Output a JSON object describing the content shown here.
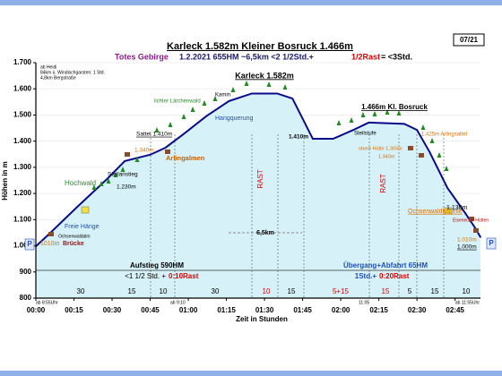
{
  "chart_data": {
    "type": "area",
    "title": "Karleck 1.582m Kleiner Bosruck 1.466m",
    "badge": "07/21",
    "subtitle": [
      {
        "text": "Totes Gebirge",
        "color": "#8b1a8b"
      },
      {
        "text": "1.2.2021   655HM     ~6,5km     <2 1/2Std.+",
        "color": "#1a1a6e"
      },
      {
        "text": "1/2Rast",
        "color": "#e00000"
      },
      {
        "text": "= <3Std.",
        "color": "#000000"
      }
    ],
    "x_label": "Zeit in Stunden",
    "y_label": "Höhen in m",
    "line_color": "#0a0a8c",
    "fill_color": "#d6f1f7",
    "x": [
      0,
      5,
      16,
      28,
      35,
      45,
      51,
      58,
      67,
      76,
      85,
      95,
      101,
      109,
      117,
      125,
      131,
      145,
      150,
      155,
      162,
      169,
      173,
      175
    ],
    "values": [
      998,
      1043,
      1146,
      1255,
      1324,
      1348,
      1375,
      1426,
      1495,
      1553,
      1582,
      1582,
      1563,
      1409,
      1409,
      1443,
      1471,
      1466,
      1443,
      1358,
      1221,
      1125,
      1067,
      1033
    ],
    "xlim": [
      0,
      175
    ],
    "ylim": [
      800,
      1700
    ],
    "xticks": [
      {
        "value": 0,
        "label": "00:00"
      },
      {
        "value": 15,
        "label": "00:15"
      },
      {
        "value": 30,
        "label": "00:30"
      },
      {
        "value": 45,
        "label": "00:45"
      },
      {
        "value": 60,
        "label": "01:00"
      },
      {
        "value": 75,
        "label": "01:15"
      },
      {
        "value": 90,
        "label": "01:30"
      },
      {
        "value": 105,
        "label": "01:45"
      },
      {
        "value": 120,
        "label": "02:00"
      },
      {
        "value": 135,
        "label": "02:15"
      },
      {
        "value": 150,
        "label": "02:30"
      },
      {
        "value": 165,
        "label": "02:45"
      }
    ],
    "yticks": [
      {
        "value": 800,
        "label": "800"
      },
      {
        "value": 900,
        "label": "900"
      },
      {
        "value": 1000,
        "label": "1.000"
      },
      {
        "value": 1100,
        "label": "1.100"
      },
      {
        "value": 1200,
        "label": "1.200"
      },
      {
        "value": 1300,
        "label": "1.300"
      },
      {
        "value": 1400,
        "label": "1.400"
      },
      {
        "value": 1500,
        "label": "1.500"
      },
      {
        "value": 1600,
        "label": "1.600"
      },
      {
        "value": 1700,
        "label": "1.700"
      }
    ],
    "grid": true,
    "durations": [
      {
        "text": "30",
        "color": "#000000"
      },
      {
        "text": "15",
        "color": "#000000"
      },
      {
        "text": "10",
        "color": "#000000"
      },
      {
        "text": "30",
        "color": "#000000"
      },
      {
        "text": "10",
        "color": "#e00000"
      },
      {
        "text": "15",
        "color": "#000000"
      },
      {
        "text": "5+15",
        "color": "#e00000"
      },
      {
        "text": "15",
        "color": "#e00000"
      },
      {
        "text": "5",
        "color": "#000000"
      },
      {
        "text": "15",
        "color": "#000000"
      },
      {
        "text": "10",
        "color": "#000000"
      }
    ],
    "annotations": [
      {
        "text": "ab Heidi",
        "color": "#000000"
      },
      {
        "text": "84km ü. Windischgarsten: 1 Std.",
        "color": "#000000"
      },
      {
        "text": "4,8km Bergstraße",
        "color": "#000000"
      },
      {
        "text": "lichter Lärchenwald",
        "color": "#2e8b2e"
      },
      {
        "text": "Kamin",
        "color": "#000000"
      },
      {
        "text": "Hangquerung",
        "color": "#1f4fbf"
      },
      {
        "text": "Sattel 1.410m",
        "color": "#000000"
      },
      {
        "text": "1.340m",
        "color": "#e07000"
      },
      {
        "text": "Arlingalmen",
        "color": "#d06000"
      },
      {
        "text": "Steilanstieg",
        "color": "#000000"
      },
      {
        "text": "1.230m",
        "color": "#000000"
      },
      {
        "text": "Hochwald",
        "color": "#2e8b2e"
      },
      {
        "text": "Freie Hänge",
        "color": "#1f4fbf"
      },
      {
        "text": "Ochsenwaldalm",
        "color": "#000000"
      },
      {
        "text": "1010m",
        "color": "#e07000"
      },
      {
        "text": "Brücke",
        "color": "#8b1a1a"
      },
      {
        "text": "1.410m",
        "color": "#000000"
      },
      {
        "text": "Steilstufe",
        "color": "#000000"
      },
      {
        "text": "obere Hütte 1.365m",
        "color": "#e07000"
      },
      {
        "text": "1.340m",
        "color": "#e07000"
      },
      {
        "text": "1.425m Arlingsattel",
        "color": "#e07000"
      },
      {
        "text": "Ochsenwaldkapelle",
        "color": "#e07000"
      },
      {
        "text": "1.130m",
        "color": "#000000"
      },
      {
        "text": "Eisenerzer Hütten",
        "color": "#c00000"
      },
      {
        "text": "1.010m",
        "color": "#e07000"
      },
      {
        "text": "1.000m",
        "color": "#000000"
      },
      {
        "text": "6,5km",
        "color": "#000000"
      },
      {
        "text": "Aufstieg 590HM",
        "color": "#000000"
      },
      {
        "text": "<1 1/2 Std. +",
        "color": "#000000"
      },
      {
        "text": "0:10Rast",
        "color": "#e00000"
      },
      {
        "text": "Übergang+Abfahrt 65HM",
        "color": "#1f4fbf"
      },
      {
        "text": "1Std.+",
        "color": "#1f4fbf"
      },
      {
        "text": "0:20Rast",
        "color": "#e00000"
      },
      {
        "text": "ab 8:55Uhr",
        "color": "#000000"
      },
      {
        "text": "ab 9:10",
        "color": "#000000"
      },
      {
        "text": "11:05",
        "color": "#000000"
      },
      {
        "text": "ab 11:55Uhr",
        "color": "#000000"
      },
      {
        "text": "P",
        "color": "#1f4fbf"
      },
      {
        "text": "P",
        "color": "#1f4fbf"
      },
      {
        "text": "RAST",
        "color": "#e00000"
      },
      {
        "text": "RAST",
        "color": "#e00000"
      },
      {
        "text": "Karleck 1.582m",
        "color": "#000000"
      },
      {
        "text": "1.466m Kl. Bosruck",
        "color": "#000000"
      }
    ]
  }
}
